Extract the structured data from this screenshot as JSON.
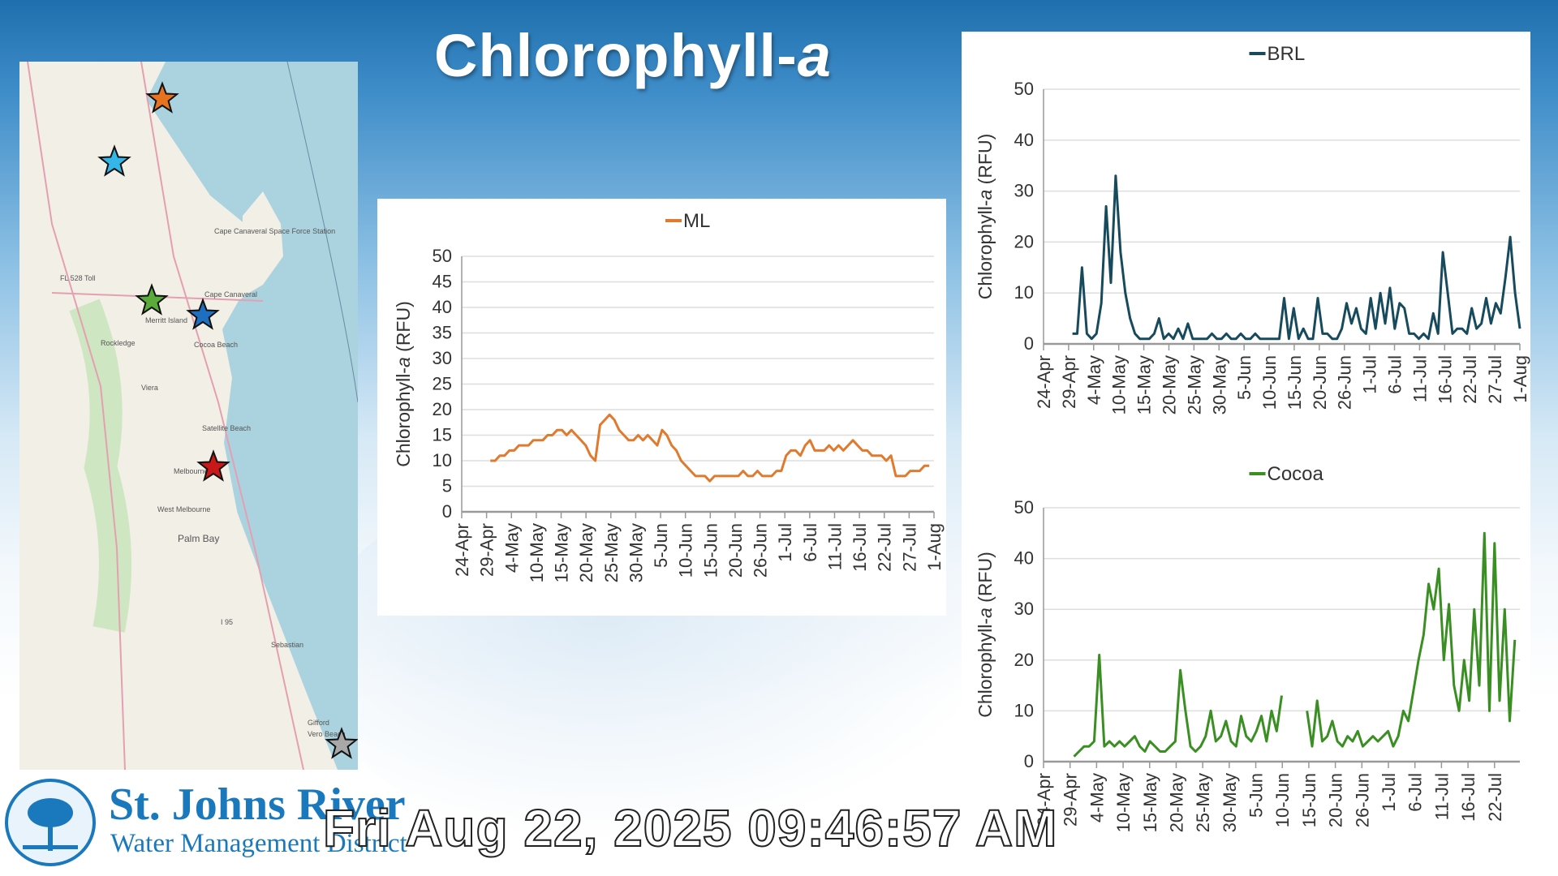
{
  "title": {
    "main": "Chlorophyll-",
    "italic": "a"
  },
  "map": {
    "labels": [
      "Cape Canaveral Space Force Station",
      "FL 528 Toll",
      "Cape Canaveral",
      "Merritt Island",
      "Rockledge",
      "Cocoa Beach",
      "Viera",
      "Satellite Beach",
      "Melbourne",
      "West Melbourne",
      "Palm Bay",
      "I 95",
      "Sebastian",
      "Gifford",
      "Vero Beach"
    ],
    "stations": [
      {
        "color": "#e8731f"
      },
      {
        "color": "#35b6e8"
      },
      {
        "color": "#5aab3a"
      },
      {
        "color": "#1f6fc0"
      },
      {
        "color": "#c81818"
      },
      {
        "color": "#a8a8a8"
      }
    ]
  },
  "logo": {
    "name": "St. Johns River",
    "sub": "Water Management District"
  },
  "timestamp": "Fri Aug 22, 2025  09:46:57 AM",
  "chart_data": [
    {
      "type": "line",
      "legend": "ML",
      "color": "#e07a2e",
      "ylabel": {
        "pre": "Chlorophyll-",
        "italic": "a",
        "post": " (RFU)"
      },
      "ylim": [
        0,
        50
      ],
      "yticks": [
        0,
        5,
        10,
        15,
        20,
        25,
        30,
        35,
        40,
        45,
        50
      ],
      "x_range_days": [
        0,
        99
      ],
      "x_start": "24-Apr",
      "data_start_day": 6,
      "xticks": [
        "24-Apr",
        "29-Apr",
        "4-May",
        "10-May",
        "15-May",
        "20-May",
        "25-May",
        "30-May",
        "5-Jun",
        "10-Jun",
        "15-Jun",
        "20-Jun",
        "26-Jun",
        "1-Jul",
        "6-Jul",
        "11-Jul",
        "16-Jul",
        "22-Jul",
        "27-Jul",
        "1-Aug"
      ],
      "values": [
        10,
        10,
        11,
        11,
        12,
        12,
        13,
        13,
        13,
        14,
        14,
        14,
        15,
        15,
        16,
        16,
        15,
        16,
        15,
        14,
        13,
        11,
        10,
        17,
        18,
        19,
        18,
        16,
        15,
        14,
        14,
        15,
        14,
        15,
        14,
        13,
        16,
        15,
        13,
        12,
        10,
        9,
        8,
        7,
        7,
        7,
        6,
        7,
        7,
        7,
        7,
        7,
        7,
        8,
        7,
        7,
        8,
        7,
        7,
        7,
        8,
        8,
        11,
        12,
        12,
        11,
        13,
        14,
        12,
        12,
        12,
        13,
        12,
        13,
        12,
        13,
        14,
        13,
        12,
        12,
        11,
        11,
        11,
        10,
        11,
        7,
        7,
        7,
        8,
        8,
        8,
        9,
        9
      ]
    },
    {
      "type": "line",
      "legend": "BRL",
      "color": "#164a5c",
      "ylabel": {
        "pre": "Chlorophyll-",
        "italic": "a",
        "post": " (RFU)"
      },
      "ylim": [
        0,
        50
      ],
      "yticks": [
        0,
        10,
        20,
        30,
        40,
        50
      ],
      "x_range_days": [
        0,
        99
      ],
      "x_start": "24-Apr",
      "data_start_day": 6,
      "xticks": [
        "24-Apr",
        "29-Apr",
        "4-May",
        "10-May",
        "15-May",
        "20-May",
        "25-May",
        "30-May",
        "5-Jun",
        "10-Jun",
        "15-Jun",
        "20-Jun",
        "26-Jun",
        "1-Jul",
        "6-Jul",
        "11-Jul",
        "16-Jul",
        "22-Jul",
        "27-Jul",
        "1-Aug"
      ],
      "values": [
        2,
        2,
        15,
        2,
        1,
        2,
        8,
        27,
        12,
        33,
        18,
        10,
        5,
        2,
        1,
        1,
        1,
        2,
        5,
        1,
        2,
        1,
        3,
        1,
        4,
        1,
        1,
        1,
        1,
        2,
        1,
        1,
        2,
        1,
        1,
        2,
        1,
        1,
        2,
        1,
        1,
        1,
        1,
        1,
        9,
        1,
        7,
        1,
        3,
        1,
        1,
        9,
        2,
        2,
        1,
        1,
        3,
        8,
        4,
        7,
        3,
        2,
        9,
        3,
        10,
        4,
        11,
        3,
        8,
        7,
        2,
        2,
        1,
        2,
        1,
        6,
        2,
        18,
        10,
        2,
        3,
        3,
        2,
        7,
        3,
        4,
        9,
        4,
        8,
        6,
        13,
        21,
        10,
        3
      ]
    },
    {
      "type": "line",
      "legend": "Cocoa",
      "color": "#3a8f22",
      "ylabel": {
        "pre": "Chlorophyll-",
        "italic": "a",
        "post": " (RFU)"
      },
      "ylim": [
        0,
        50
      ],
      "yticks": [
        0,
        10,
        20,
        30,
        40,
        50
      ],
      "x_range_days": [
        0,
        94
      ],
      "x_start": "24-Apr",
      "data_start_day": 6,
      "xticks": [
        "24-Apr",
        "29-Apr",
        "4-May",
        "10-May",
        "15-May",
        "20-May",
        "25-May",
        "30-May",
        "5-Jun",
        "10-Jun",
        "15-Jun",
        "20-Jun",
        "26-Jun",
        "1-Jul",
        "6-Jul",
        "11-Jul",
        "16-Jul",
        "22-Jul"
      ],
      "values": [
        1,
        2,
        3,
        3,
        4,
        21,
        3,
        4,
        3,
        4,
        3,
        4,
        5,
        3,
        2,
        4,
        3,
        2,
        2,
        3,
        4,
        18,
        10,
        3,
        2,
        3,
        5,
        10,
        4,
        5,
        8,
        4,
        3,
        9,
        5,
        4,
        6,
        9,
        4,
        10,
        6,
        13,
        null,
        null,
        null,
        null,
        10,
        3,
        12,
        4,
        5,
        8,
        4,
        3,
        5,
        4,
        6,
        3,
        4,
        5,
        4,
        5,
        6,
        3,
        5,
        10,
        8,
        14,
        20,
        25,
        35,
        30,
        38,
        20,
        31,
        15,
        10,
        20,
        12,
        30,
        15,
        45,
        10,
        43,
        12,
        30,
        8,
        24
      ]
    }
  ]
}
